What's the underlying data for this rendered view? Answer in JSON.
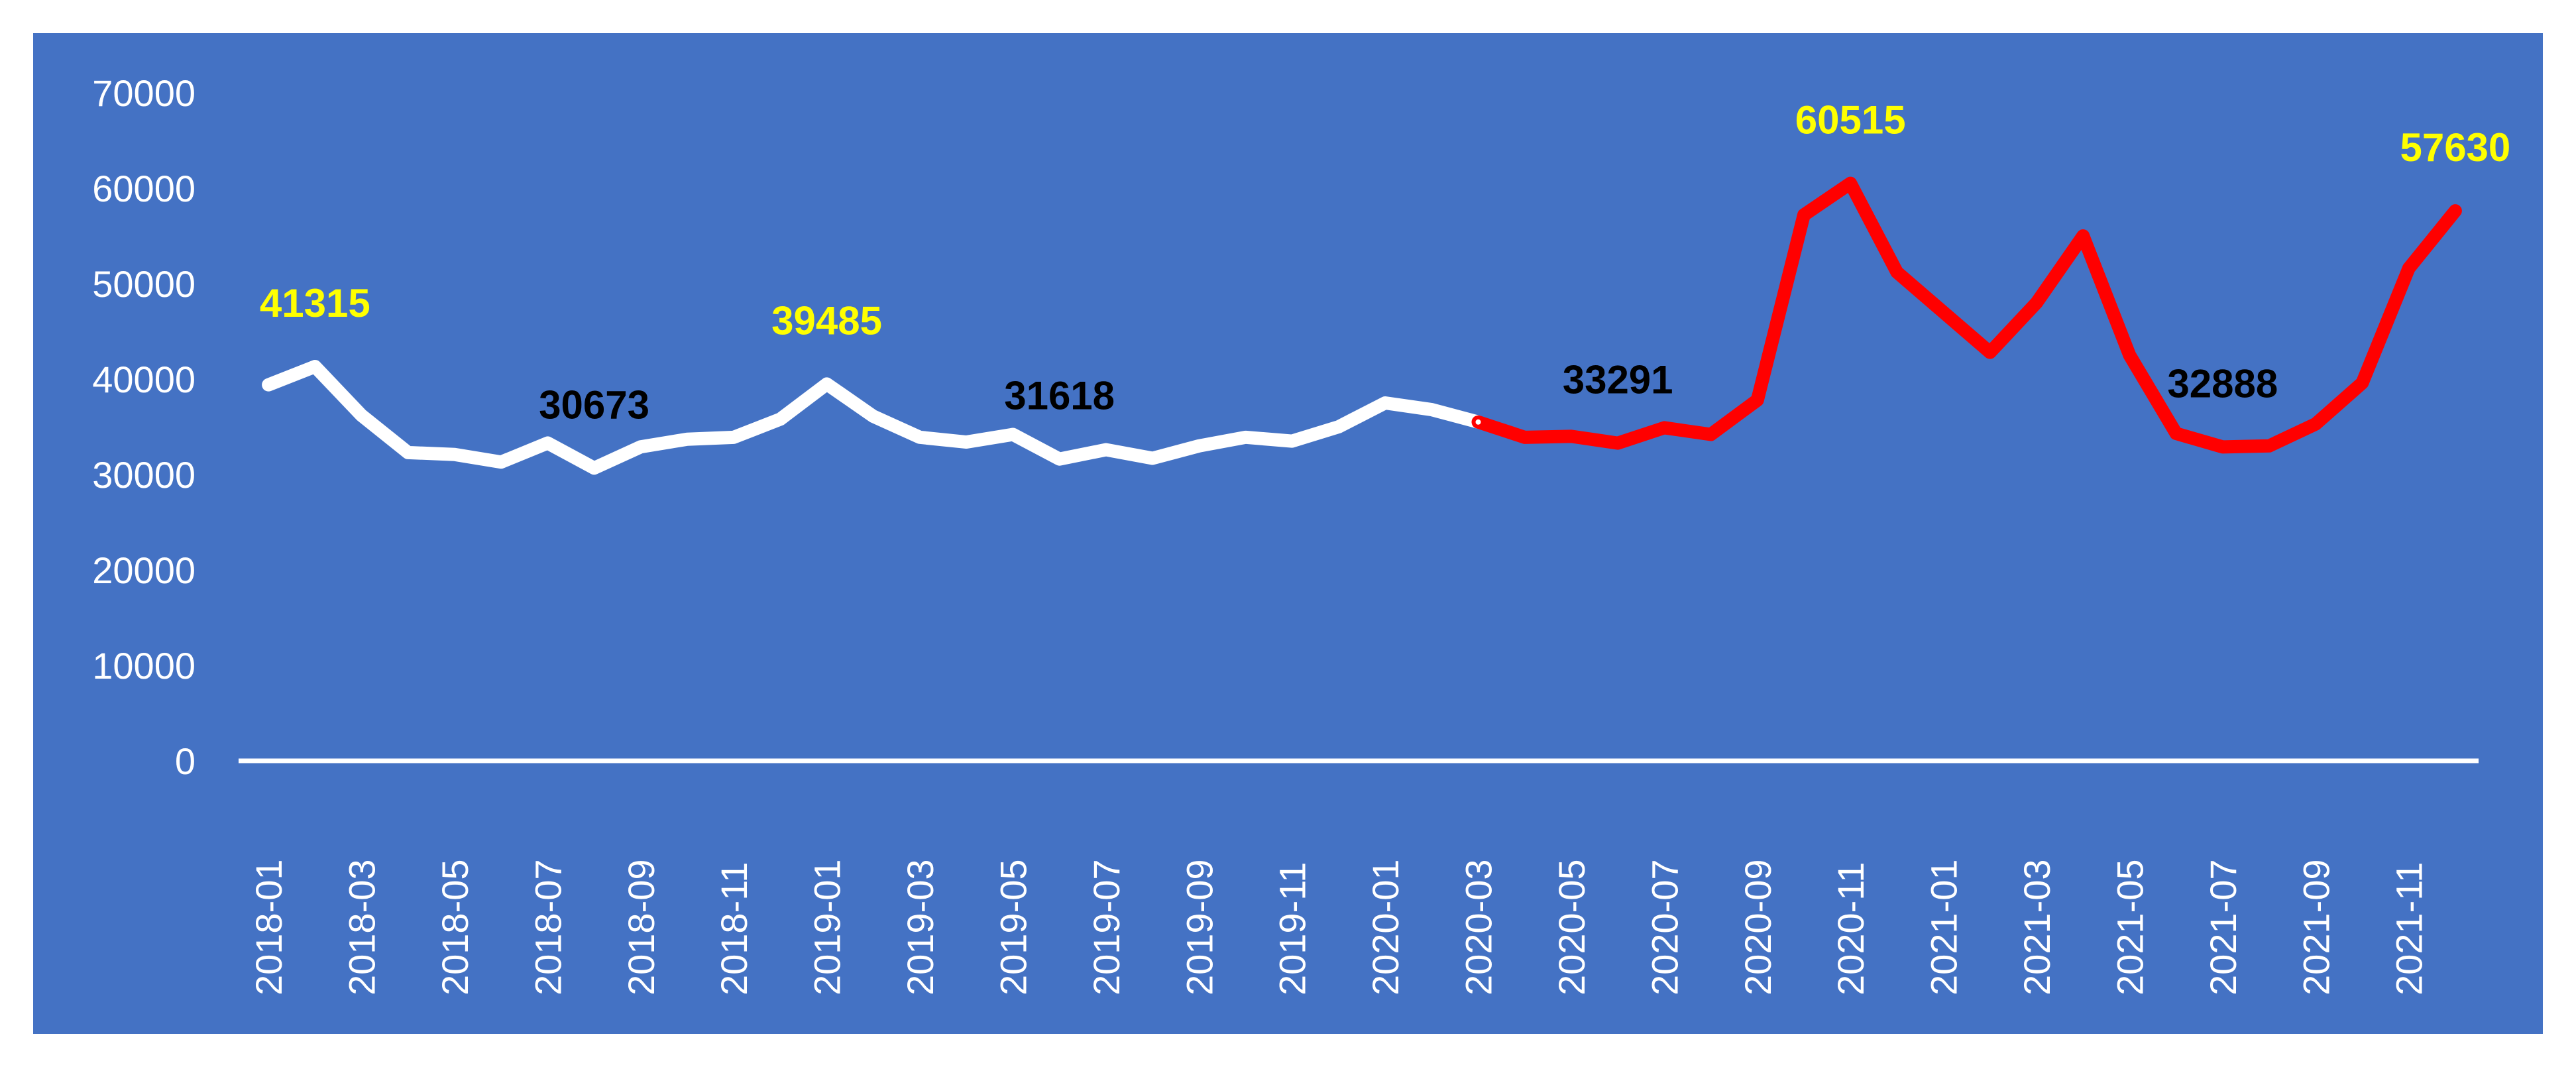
{
  "chart_data": {
    "type": "line",
    "title": "",
    "xlabel": "",
    "ylabel": "",
    "ylim": [
      0,
      70000
    ],
    "yticks": [
      "0",
      "10000",
      "20000",
      "30000",
      "40000",
      "50000",
      "60000",
      "70000"
    ],
    "x": [
      "2018-01",
      "2018-02",
      "2018-03",
      "2018-04",
      "2018-05",
      "2018-06",
      "2018-07",
      "2018-08",
      "2018-09",
      "2018-10",
      "2018-11",
      "2018-12",
      "2019-01",
      "2019-02",
      "2019-03",
      "2019-04",
      "2019-05",
      "2019-06",
      "2019-07",
      "2019-08",
      "2019-09",
      "2019-10",
      "2019-11",
      "2019-12",
      "2020-01",
      "2020-02",
      "2020-03",
      "2020-04",
      "2020-05",
      "2020-06",
      "2020-07",
      "2020-08",
      "2020-09",
      "2020-10",
      "2020-11",
      "2020-12",
      "2021-01",
      "2021-02",
      "2021-03",
      "2021-04",
      "2021-05",
      "2021-06",
      "2021-07",
      "2021-08",
      "2021-09",
      "2021-10",
      "2021-11",
      "2021-12"
    ],
    "xtick_labels": [
      "2018-01",
      "2018-03",
      "2018-05",
      "2018-07",
      "2018-09",
      "2018-11",
      "2019-01",
      "2019-03",
      "2019-05",
      "2019-07",
      "2019-09",
      "2019-11",
      "2020-01",
      "2020-03",
      "2020-05",
      "2020-07",
      "2020-09",
      "2020-11",
      "2021-01",
      "2021-03",
      "2021-05",
      "2021-07",
      "2021-09",
      "2021-11"
    ],
    "values": [
      39400,
      41315,
      36200,
      32300,
      32100,
      31300,
      33300,
      30673,
      32900,
      33700,
      33900,
      35800,
      39485,
      36100,
      33900,
      33400,
      34200,
      31618,
      32600,
      31700,
      33000,
      33900,
      33500,
      35000,
      37500,
      36800,
      35500,
      33900,
      34000,
      33291,
      34900,
      34200,
      37800,
      57200,
      60515,
      51200,
      47000,
      42800,
      48000,
      55000,
      42500,
      34300,
      32888,
      33000,
      35300,
      39600,
      51600,
      57630
    ],
    "series": [
      {
        "segment": "2018-01 to 2020-03",
        "color": "#FFFFFF"
      },
      {
        "segment": "2020-03 to 2021-12",
        "color": "#FF0000"
      }
    ],
    "split_index": 26,
    "data_labels": [
      {
        "index": 1,
        "text": "41315",
        "color": "#FFFF00"
      },
      {
        "index": 7,
        "text": "30673",
        "color": "#000000"
      },
      {
        "index": 12,
        "text": "39485",
        "color": "#FFFF00"
      },
      {
        "index": 17,
        "text": "31618",
        "color": "#000000"
      },
      {
        "index": 29,
        "text": "33291",
        "color": "#000000"
      },
      {
        "index": 34,
        "text": "60515",
        "color": "#FFFF00"
      },
      {
        "index": 42,
        "text": "32888",
        "color": "#000000"
      },
      {
        "index": 47,
        "text": "57630",
        "color": "#FFFF00"
      }
    ],
    "background": "#4472C4",
    "drop_lines": true,
    "grid": false,
    "legend": "none"
  }
}
